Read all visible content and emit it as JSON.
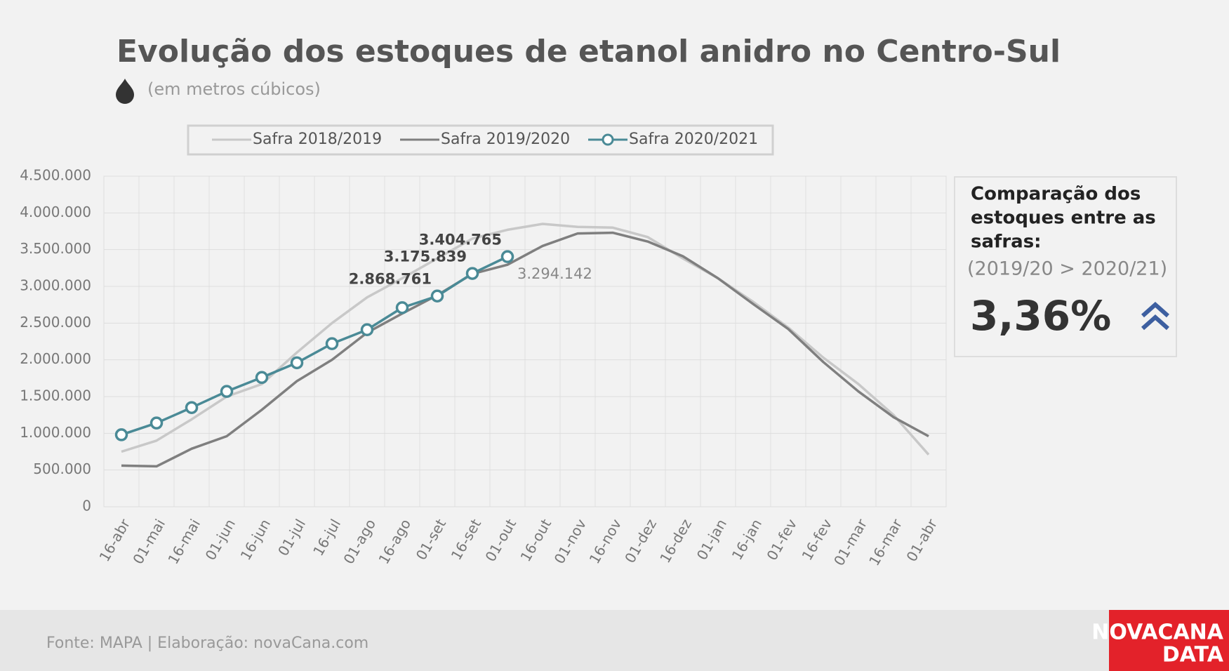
{
  "chart_data": {
    "type": "line",
    "title": "Evolução dos estoques de etanol anidro no Centro-Sul",
    "subtitle": "(em metros cúbicos)",
    "categories": [
      "16-abr",
      "01-mai",
      "16-mai",
      "01-jun",
      "16-jun",
      "01-jul",
      "16-jul",
      "01-ago",
      "16-ago",
      "01-set",
      "16-set",
      "01-out",
      "16-out",
      "01-nov",
      "16-nov",
      "01-dez",
      "16-dez",
      "01-jan",
      "16-jan",
      "01-fev",
      "16-fev",
      "01-mar",
      "16-mar",
      "01-abr"
    ],
    "series": [
      {
        "name": "Safra 2018/2019",
        "color": "#c8c8c8",
        "markers": false,
        "values": [
          750000,
          900000,
          1190000,
          1500000,
          1670000,
          2100000,
          2500000,
          2850000,
          3110000,
          3380000,
          3650000,
          3770000,
          3850000,
          3810000,
          3800000,
          3670000,
          3380000,
          3110000,
          2790000,
          2440000,
          2030000,
          1670000,
          1250000,
          710000
        ]
      },
      {
        "name": "Safra 2019/2020",
        "color": "#7f7f7f",
        "markers": false,
        "values": [
          560000,
          550000,
          790000,
          960000,
          1320000,
          1710000,
          2000000,
          2370000,
          2630000,
          2880000,
          3170000,
          3294142,
          3550000,
          3720000,
          3730000,
          3610000,
          3410000,
          3110000,
          2760000,
          2420000,
          1970000,
          1570000,
          1220000,
          960000
        ],
        "value_labels": [
          null,
          null,
          null,
          null,
          null,
          null,
          null,
          null,
          null,
          null,
          null,
          "3.294.142",
          null,
          null,
          null,
          null,
          null,
          null,
          null,
          null,
          null,
          null,
          null,
          null
        ]
      },
      {
        "name": "Safra 2020/2021",
        "color": "#4a8a96",
        "markers": true,
        "values": [
          980000,
          1140000,
          1350000,
          1570000,
          1760000,
          1960000,
          2220000,
          2410000,
          2710000,
          2868761,
          3175839,
          3404765,
          null,
          null,
          null,
          null,
          null,
          null,
          null,
          null,
          null,
          null,
          null,
          null
        ],
        "value_labels": [
          null,
          null,
          null,
          null,
          null,
          null,
          null,
          null,
          null,
          "2.868.761",
          "3.175.839",
          "3.404.765",
          null,
          null,
          null,
          null,
          null,
          null,
          null,
          null,
          null,
          null,
          null,
          null
        ]
      }
    ],
    "ylim": [
      0,
      4500000
    ],
    "yticks": [
      0,
      {
        "value": 500000,
        "label": "500.000"
      },
      {
        "value": 1000000,
        "label": "1.000.000"
      },
      {
        "value": 1500000,
        "label": "1.500.000"
      },
      {
        "value": 2000000,
        "label": "2.000.000"
      },
      {
        "value": 2500000,
        "label": "2.500.000"
      },
      {
        "value": 3000000,
        "label": "3.000.000"
      },
      {
        "value": 3500000,
        "label": "3.500.000"
      },
      {
        "value": 4000000,
        "label": "4.000.000"
      },
      {
        "value": 4500000,
        "label": "4.500.000"
      }
    ],
    "grid": true,
    "legend": "top",
    "panel": {
      "title": [
        "Comparação dos",
        "estoques entre as",
        "safras:"
      ],
      "subtitle": "(2019/20 > 2020/21)",
      "value": "3,36%"
    },
    "source": "Fonte: MAPA  | Elaboração: novaCana.com",
    "logo": [
      "NOVACANA",
      "DATA"
    ]
  }
}
